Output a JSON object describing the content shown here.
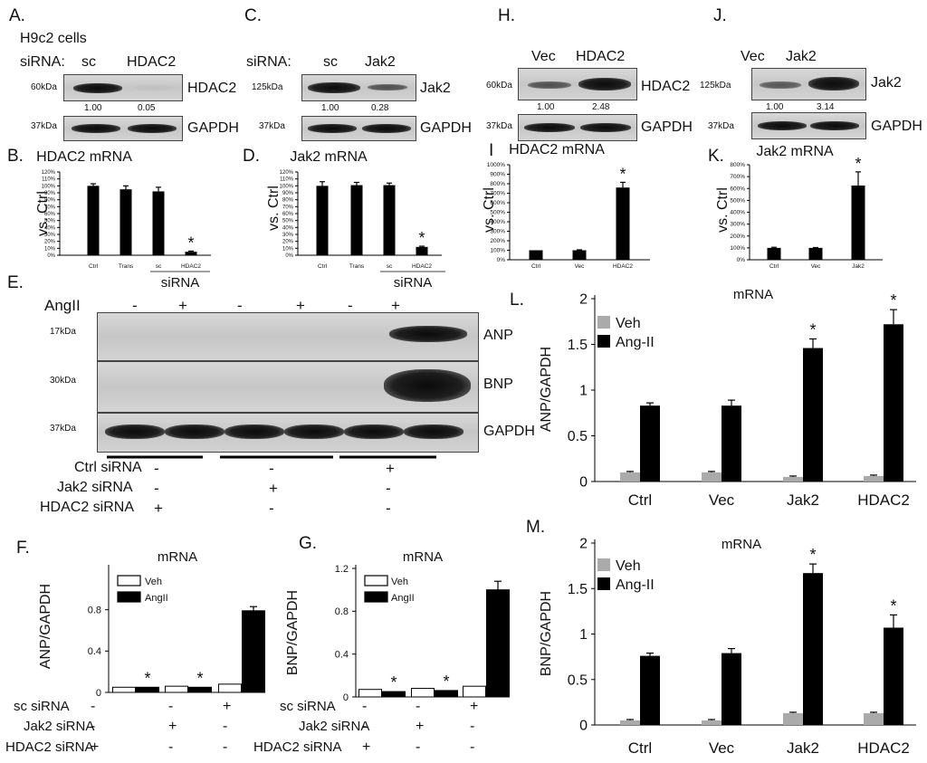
{
  "panelA": {
    "letter": "A.",
    "cells": "H9c2 cells",
    "siRNA_label": "siRNA:",
    "lanes": [
      "sc",
      "HDAC2"
    ],
    "kda_top": "60kDa",
    "kda_bottom": "37kDa",
    "target": "HDAC2",
    "loading": "GAPDH",
    "quant": [
      "1.00",
      "0.05"
    ],
    "band_levels": [
      1.0,
      0.05
    ]
  },
  "panelC": {
    "letter": "C.",
    "siRNA_label": "siRNA:",
    "lanes": [
      "sc",
      "Jak2"
    ],
    "kda_top": "125kDa",
    "kda_bottom": "37kDa",
    "target": "Jak2",
    "loading": "GAPDH",
    "quant": [
      "1.00",
      "0.28"
    ],
    "band_levels": [
      1.0,
      0.28
    ]
  },
  "panelH": {
    "letter": "H.",
    "lanes": [
      "Vec",
      "HDAC2"
    ],
    "kda_top": "60kDa",
    "kda_bottom": "37kDa",
    "target": "HDAC2",
    "loading": "GAPDH",
    "quant": [
      "1.00",
      "2.48"
    ]
  },
  "panelJ": {
    "letter": "J.",
    "lanes": [
      "Vec",
      "Jak2"
    ],
    "kda_top": "125kDa",
    "kda_bottom": "37kDa",
    "target": "Jak2",
    "loading": "GAPDH",
    "quant": [
      "1.00",
      "3.14"
    ]
  },
  "panelE": {
    "letter": "E.",
    "treatment": "AngII",
    "signs": [
      "-",
      "+",
      "-",
      "+",
      "-",
      "+"
    ],
    "rows": [
      {
        "kda": "17kDa",
        "name": "ANP"
      },
      {
        "kda": "30kDa",
        "name": "BNP"
      },
      {
        "kda": "37kDa",
        "name": "GAPDH"
      }
    ],
    "conds": [
      {
        "label": "Ctrl siRNA",
        "vals": [
          "-",
          "-",
          "+"
        ]
      },
      {
        "label": "Jak2 siRNA",
        "vals": [
          "-",
          "+",
          "-"
        ]
      },
      {
        "label": "HDAC2 siRNA",
        "vals": [
          "+",
          "-",
          "-"
        ]
      }
    ]
  },
  "letters": {
    "B": "B.",
    "D": "D.",
    "I": "I",
    "K": "K.",
    "F": "F.",
    "G": "G.",
    "L": "L.",
    "M": "M."
  },
  "chart_data": [
    {
      "id": "B",
      "type": "bar",
      "title": "HDAC2 mRNA",
      "ylabel": "vs. Ctrl",
      "xgroup_label": "siRNA",
      "categories": [
        "Ctrl",
        "Trans",
        "sc",
        "HDAC2"
      ],
      "values": [
        100,
        95,
        92,
        5
      ],
      "errors": [
        3,
        5,
        6,
        1
      ],
      "ylim": [
        0,
        120
      ],
      "ticks": [
        0,
        10,
        20,
        30,
        40,
        50,
        60,
        70,
        80,
        90,
        100,
        110,
        120
      ],
      "tick_suffix": "%",
      "significance": [
        false,
        false,
        false,
        true
      ],
      "grid": false
    },
    {
      "id": "D",
      "type": "bar",
      "title": "Jak2 mRNA",
      "ylabel": "vs. Ctrl",
      "xgroup_label": "siRNA",
      "categories": [
        "Ctrl",
        "Trans",
        "sc",
        "HDAC2"
      ],
      "values": [
        100,
        101,
        101,
        12
      ],
      "errors": [
        6,
        4,
        3,
        1
      ],
      "ylim": [
        0,
        120
      ],
      "ticks": [
        0,
        10,
        20,
        30,
        40,
        50,
        60,
        70,
        80,
        90,
        100,
        110,
        120
      ],
      "tick_suffix": "%",
      "significance": [
        false,
        false,
        false,
        true
      ],
      "grid": false
    },
    {
      "id": "I",
      "type": "bar",
      "title": "HDAC2 mRNA",
      "ylabel": "vs. Ctrl",
      "categories": [
        "Ctrl",
        "Vec",
        "HDAC2"
      ],
      "values": [
        100,
        100,
        760
      ],
      "errors": [
        0,
        5,
        55
      ],
      "ylim": [
        0,
        1000
      ],
      "ticks": [
        0,
        100,
        200,
        300,
        400,
        500,
        600,
        700,
        800,
        900,
        1000
      ],
      "tick_suffix": "%",
      "significance": [
        false,
        false,
        true
      ],
      "grid": false
    },
    {
      "id": "K",
      "type": "bar",
      "title": "Jak2 mRNA",
      "ylabel": "vs. Ctrl",
      "categories": [
        "Ctrl",
        "Vec",
        "Jak2"
      ],
      "values": [
        100,
        100,
        625
      ],
      "errors": [
        5,
        3,
        115
      ],
      "ylim": [
        0,
        800
      ],
      "ticks": [
        0,
        100,
        200,
        300,
        400,
        500,
        600,
        700,
        800
      ],
      "tick_suffix": "%",
      "significance": [
        false,
        false,
        true
      ],
      "grid": false
    },
    {
      "id": "F",
      "type": "bar",
      "title": "mRNA",
      "ylabel": "ANP/GAPDH",
      "ylim": [
        0,
        1.2
      ],
      "ticks": [
        0,
        0.4,
        0.8
      ],
      "tick_labels": [
        "0",
        "0.4",
        "0.8"
      ],
      "legend_position": "top-left",
      "series": [
        {
          "name": "Veh",
          "color": "#ffffff",
          "values": [
            0.05,
            0.06,
            0.08
          ],
          "errors": [
            0,
            0,
            0
          ]
        },
        {
          "name": "AngII",
          "color": "#000000",
          "values": [
            0.05,
            0.05,
            0.79
          ],
          "errors": [
            0,
            0,
            0.04
          ]
        }
      ],
      "significance": [
        true,
        true,
        false
      ],
      "grid": false,
      "conds": [
        {
          "label": "sc siRNA",
          "vals": [
            "-",
            "-",
            "+"
          ]
        },
        {
          "label": "Jak2 siRNA",
          "vals": [
            "-",
            "+",
            "-"
          ]
        },
        {
          "label": "HDAC2 siRNA",
          "vals": [
            "+",
            "-",
            "-"
          ]
        }
      ]
    },
    {
      "id": "G",
      "type": "bar",
      "title": "mRNA",
      "ylabel": "BNP/GAPDH",
      "ylim": [
        0,
        1.2
      ],
      "ticks": [
        0,
        0.4,
        0.8,
        1.2
      ],
      "tick_labels": [
        "0",
        "0.4",
        "0.8",
        "1.2"
      ],
      "legend_position": "top-left",
      "series": [
        {
          "name": "Veh",
          "color": "#ffffff",
          "values": [
            0.07,
            0.08,
            0.1
          ],
          "errors": [
            0,
            0,
            0
          ]
        },
        {
          "name": "AngII",
          "color": "#000000",
          "values": [
            0.05,
            0.06,
            1.0
          ],
          "errors": [
            0,
            0,
            0.08
          ]
        }
      ],
      "significance": [
        true,
        true,
        false
      ],
      "grid": false,
      "conds": [
        {
          "label": "sc siRNA",
          "vals": [
            "-",
            "-",
            "+"
          ]
        },
        {
          "label": "Jak2 siRNA",
          "vals": [
            "-",
            "+",
            "-"
          ]
        },
        {
          "label": "HDAC2 siRNA",
          "vals": [
            "+",
            "-",
            "-"
          ]
        }
      ]
    },
    {
      "id": "L",
      "type": "bar",
      "title": "mRNA",
      "ylabel": "ANP/GAPDH",
      "categories": [
        "Ctrl",
        "Vec",
        "Jak2",
        "HDAC2"
      ],
      "ylim": [
        0,
        2
      ],
      "ticks": [
        0,
        0.5,
        1,
        1.5,
        2
      ],
      "tick_labels": [
        "0",
        "0.5",
        "1",
        "1.5",
        "2"
      ],
      "legend_position": "top-left",
      "series": [
        {
          "name": "Veh",
          "color": "#aaaaaa",
          "values": [
            0.1,
            0.1,
            0.05,
            0.06
          ],
          "errors": [
            0.01,
            0.01,
            0.01,
            0.01
          ]
        },
        {
          "name": "Ang-II",
          "color": "#000000",
          "values": [
            0.83,
            0.83,
            1.46,
            1.72
          ],
          "errors": [
            0.03,
            0.06,
            0.1,
            0.16
          ]
        }
      ],
      "significance": [
        false,
        false,
        true,
        true
      ],
      "grid": false
    },
    {
      "id": "M",
      "type": "bar",
      "title": "mRNA",
      "ylabel": "BNP/GAPDH",
      "categories": [
        "Ctrl",
        "Vec",
        "Jak2",
        "HDAC2"
      ],
      "ylim": [
        0,
        2
      ],
      "ticks": [
        0,
        0.5,
        1,
        1.5,
        2
      ],
      "tick_labels": [
        "0",
        "0.5",
        "1",
        "1.5",
        "2"
      ],
      "legend_position": "top-left",
      "series": [
        {
          "name": "Veh",
          "color": "#aaaaaa",
          "values": [
            0.05,
            0.05,
            0.13,
            0.13
          ],
          "errors": [
            0.01,
            0.01,
            0.01,
            0.01
          ]
        },
        {
          "name": "Ang-II",
          "color": "#000000",
          "values": [
            0.76,
            0.79,
            1.67,
            1.07
          ],
          "errors": [
            0.03,
            0.05,
            0.1,
            0.14
          ]
        }
      ],
      "significance": [
        false,
        false,
        true,
        true
      ],
      "grid": false
    }
  ]
}
